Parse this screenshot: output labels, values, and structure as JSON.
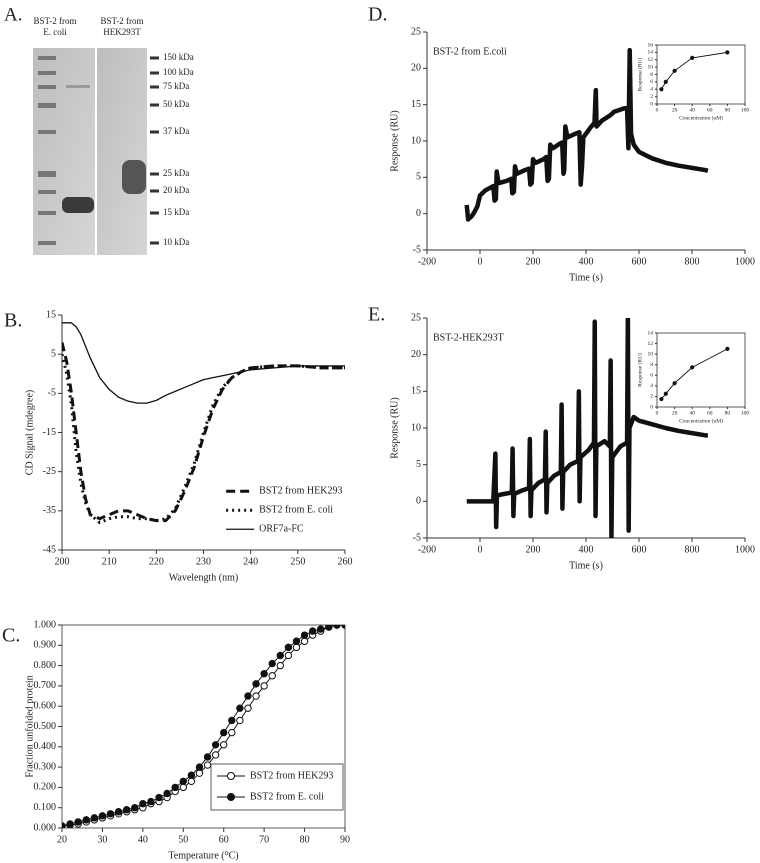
{
  "gel": {
    "panel_label": "A.",
    "lanes": [
      [
        "BST-2 from",
        "E. coli"
      ],
      [
        "BST-2 from",
        "HEK293T"
      ]
    ],
    "markers": [
      "150 kDa",
      "100 kDa",
      "75 kDa",
      "50 kDa",
      "37 kDa",
      "25 kDa",
      "20 kDa",
      "15 kDa",
      "10 kDa"
    ]
  },
  "chart_data": [
    {
      "type": "line",
      "panel_label": "B.",
      "x_label": "Wavelength (nm)",
      "y_label": "CD Signal (mdegree)",
      "xlim": [
        200,
        260
      ],
      "xticks": [
        200,
        210,
        220,
        230,
        240,
        250,
        260
      ],
      "ylim": [
        -45,
        15
      ],
      "yticks": [
        -45,
        -35,
        -25,
        -15,
        -5,
        5,
        15
      ],
      "legend": "right",
      "x": [
        200,
        201,
        202,
        203,
        204,
        205,
        206,
        208,
        210,
        212,
        214,
        216,
        218,
        220,
        222,
        224,
        226,
        228,
        230,
        232,
        234,
        236,
        238,
        240,
        245,
        250,
        255,
        260
      ],
      "series": [
        {
          "name": "BST2 from HEK293",
          "color": "#111",
          "dash": "9,5",
          "width": 3,
          "values": [
            8,
            3,
            -5,
            -15,
            -25,
            -32,
            -36,
            -37,
            -36,
            -35,
            -35,
            -36,
            -37,
            -37.5,
            -37.5,
            -35,
            -30,
            -24,
            -16,
            -9,
            -4,
            -1,
            0.5,
            1.5,
            2,
            2,
            1.5,
            1.5
          ]
        },
        {
          "name": "BST2 from E. coli",
          "color": "#111",
          "dash": "2,4",
          "width": 3,
          "values": [
            5,
            0,
            -8,
            -20,
            -28,
            -33,
            -36,
            -38,
            -37,
            -36.5,
            -36.5,
            -37,
            -37,
            -37.5,
            -37,
            -34.5,
            -29,
            -23,
            -15,
            -8,
            -3.5,
            -1,
            0.5,
            1.5,
            2,
            2,
            1.5,
            1.5
          ]
        },
        {
          "name": "ORF7a-FC",
          "color": "#111",
          "dash": "none",
          "width": 1.3,
          "values": [
            13,
            13,
            13,
            12,
            10,
            7,
            4,
            -1,
            -4,
            -6,
            -7,
            -7.5,
            -7.5,
            -6.8,
            -5.5,
            -4.5,
            -3.5,
            -2.5,
            -1.5,
            -1,
            -0.5,
            0,
            0.5,
            1,
            1.5,
            2,
            2,
            2
          ]
        }
      ]
    },
    {
      "type": "line",
      "panel_label": "C.",
      "box": true,
      "x_label": "Temperature (⁰C)",
      "y_label": "Fraction unfolded protein",
      "xlim": [
        20,
        90
      ],
      "xticks": [
        20,
        30,
        40,
        50,
        60,
        70,
        80,
        90
      ],
      "ylim": [
        0,
        1
      ],
      "yticks": [
        {
          "value": 0,
          "label": "0.000"
        },
        {
          "value": 0.1,
          "label": "0.100"
        },
        {
          "value": 0.2,
          "label": "0.200"
        },
        {
          "value": 0.3,
          "label": "0.300"
        },
        {
          "value": 0.4,
          "label": "0.400"
        },
        {
          "value": 0.5,
          "label": "0.500"
        },
        {
          "value": 0.6,
          "label": "0.600"
        },
        {
          "value": 0.7,
          "label": "0.700"
        },
        {
          "value": 0.8,
          "label": "0.800"
        },
        {
          "value": 0.9,
          "label": "0.900"
        },
        {
          "value": 1,
          "label": "1.000"
        }
      ],
      "legend": "lower right",
      "x": [
        20,
        22,
        24,
        26,
        28,
        30,
        32,
        34,
        36,
        38,
        40,
        42,
        44,
        46,
        48,
        50,
        52,
        54,
        56,
        58,
        60,
        62,
        64,
        66,
        68,
        70,
        72,
        74,
        76,
        78,
        80,
        82,
        84,
        86,
        88,
        90
      ],
      "series": [
        {
          "name": "BST2 from HEK293",
          "color": "#111",
          "marker": "open",
          "width": 1,
          "values": [
            0.01,
            0.015,
            0.02,
            0.03,
            0.04,
            0.05,
            0.06,
            0.07,
            0.08,
            0.09,
            0.1,
            0.12,
            0.13,
            0.15,
            0.18,
            0.2,
            0.23,
            0.27,
            0.31,
            0.36,
            0.41,
            0.47,
            0.53,
            0.59,
            0.65,
            0.7,
            0.75,
            0.8,
            0.85,
            0.89,
            0.92,
            0.95,
            0.97,
            0.99,
            1.0,
            1.0
          ]
        },
        {
          "name": "BST2 from E. coli",
          "color": "#111",
          "marker": "filled",
          "width": 1,
          "values": [
            0.01,
            0.02,
            0.03,
            0.04,
            0.05,
            0.06,
            0.07,
            0.08,
            0.09,
            0.1,
            0.12,
            0.13,
            0.15,
            0.17,
            0.2,
            0.23,
            0.26,
            0.3,
            0.35,
            0.41,
            0.47,
            0.53,
            0.59,
            0.65,
            0.71,
            0.76,
            0.81,
            0.85,
            0.89,
            0.92,
            0.95,
            0.97,
            0.98,
            0.99,
            1.0,
            1.0
          ]
        }
      ]
    },
    {
      "type": "line",
      "panel_label": "D.",
      "annotation": "BST-2 from E.coli",
      "x_label": "Time (s)",
      "y_label": "Response (RU)",
      "xlim": [
        -200,
        1000
      ],
      "xticks": [
        -200,
        0,
        200,
        400,
        600,
        800,
        1000
      ],
      "ylim": [
        -5,
        25
      ],
      "yticks": [
        -5,
        0,
        5,
        10,
        15,
        20,
        25
      ],
      "x": [
        -50,
        -45,
        -30,
        -20,
        -10,
        0,
        20,
        50,
        55,
        60,
        63,
        70,
        100,
        118,
        122,
        128,
        132,
        140,
        170,
        185,
        190,
        195,
        200,
        210,
        240,
        250,
        255,
        260,
        265,
        275,
        300,
        310,
        315,
        318,
        322,
        330,
        360,
        375,
        380,
        385,
        390,
        420,
        432,
        437,
        440,
        460,
        490,
        500,
        505,
        545,
        555,
        560,
        565,
        570,
        580,
        600,
        650,
        700,
        750,
        800,
        850,
        860
      ],
      "series": [
        {
          "color": "#111",
          "dash": "none",
          "width": 4.5,
          "values": [
            1.2,
            -0.8,
            -0.3,
            0.3,
            1,
            2.5,
            3.2,
            3.8,
            1.8,
            2,
            5.8,
            4.2,
            4.5,
            4.8,
            2.8,
            3,
            6.5,
            5.5,
            6,
            6.2,
            4,
            4.2,
            7.5,
            7,
            7.5,
            7.8,
            4.5,
            4.8,
            9.5,
            9,
            9.6,
            9.8,
            5.5,
            6,
            12,
            10.5,
            11,
            11.2,
            4,
            6.5,
            10.5,
            12,
            12.5,
            17,
            12,
            12.8,
            13.5,
            13.8,
            14,
            14.5,
            14.5,
            9,
            22.5,
            11,
            9.5,
            8.5,
            7.6,
            7,
            6.6,
            6.3,
            6,
            5.9
          ]
        }
      ]
    },
    {
      "type": "line",
      "panel_label": "E.",
      "annotation": "BST-2-HEK293T",
      "x_label": "Time (s)",
      "y_label": "Response (RU)",
      "xlim": [
        -200,
        1000
      ],
      "xticks": [
        -200,
        0,
        200,
        400,
        600,
        800,
        1000
      ],
      "ylim": [
        -5,
        25
      ],
      "yticks": [
        -5,
        0,
        5,
        10,
        15,
        20,
        25
      ],
      "x": [
        -50,
        0,
        50,
        58,
        61,
        64,
        90,
        120,
        123,
        126,
        129,
        160,
        185,
        188,
        191,
        194,
        220,
        245,
        248,
        251,
        254,
        280,
        305,
        308,
        311,
        314,
        340,
        370,
        373,
        376,
        379,
        410,
        430,
        433,
        436,
        439,
        470,
        490,
        493,
        496,
        499,
        530,
        555,
        558,
        561,
        564,
        580,
        600,
        650,
        700,
        750,
        800,
        850,
        860
      ],
      "series": [
        {
          "color": "#111",
          "dash": "none",
          "width": 4.5,
          "values": [
            0,
            0,
            0,
            6.5,
            -3.5,
            0.8,
            1,
            1.2,
            7.2,
            -2,
            1,
            1.5,
            1.8,
            8.5,
            -2,
            1.5,
            2.5,
            3,
            9.5,
            -1.5,
            2.5,
            3.5,
            4,
            13.2,
            -1,
            4,
            5,
            5.5,
            15,
            0,
            6,
            7,
            8,
            24.5,
            -2,
            7.5,
            8.2,
            7.5,
            19.2,
            -5,
            6,
            7.5,
            8,
            26,
            -4,
            10,
            11.5,
            11,
            10.5,
            10,
            9.6,
            9.3,
            9,
            9
          ]
        }
      ]
    },
    {
      "type": "line",
      "box": true,
      "x_label": "Concentration (uM)",
      "y_label": "Response (RU)",
      "xlim": [
        0,
        100
      ],
      "xticks": [
        0,
        20,
        40,
        60,
        80,
        100
      ],
      "ylim": [
        0,
        16
      ],
      "yticks": [
        0,
        2,
        4,
        6,
        8,
        10,
        12,
        14,
        16
      ],
      "x": [
        5,
        10,
        20,
        40,
        80
      ],
      "series": [
        {
          "color": "#111",
          "marker": "filled",
          "width": 0.9,
          "values": [
            4,
            6,
            9,
            12.5,
            14
          ]
        }
      ]
    },
    {
      "type": "line",
      "box": true,
      "x_label": "Concentration (uM)",
      "y_label": "Response (RU)",
      "xlim": [
        0,
        100
      ],
      "xticks": [
        0,
        20,
        40,
        60,
        80,
        100
      ],
      "ylim": [
        0,
        14
      ],
      "yticks": [
        0,
        2,
        4,
        6,
        8,
        10,
        12,
        14
      ],
      "x": [
        5,
        10,
        20,
        40,
        80
      ],
      "series": [
        {
          "color": "#111",
          "marker": "filled",
          "width": 0.9,
          "values": [
            1.5,
            2.5,
            4.5,
            7.5,
            11
          ]
        }
      ]
    }
  ]
}
